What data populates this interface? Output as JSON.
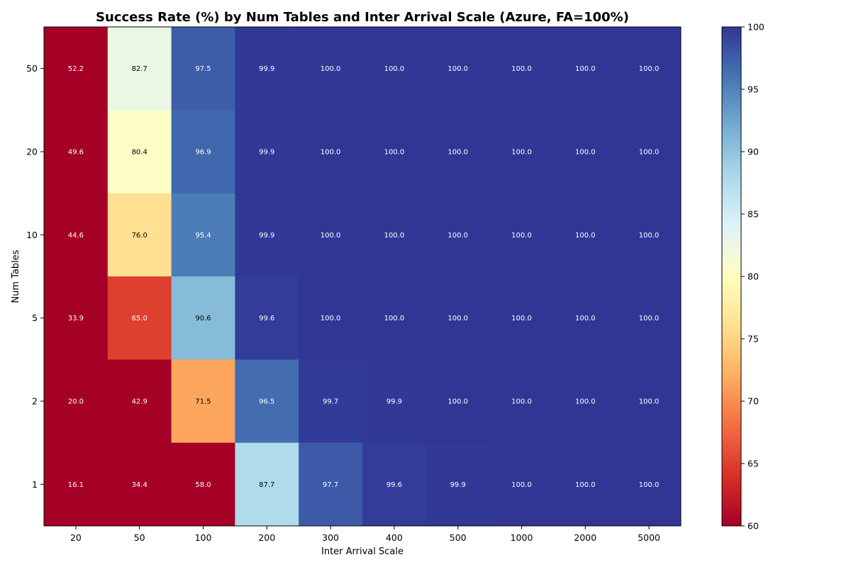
{
  "chart_data": {
    "type": "heatmap",
    "title": "Success Rate (%) by Num Tables and Inter Arrival Scale (Azure, FA=100%)",
    "xlabel": "Inter Arrival Scale",
    "ylabel": "Num Tables",
    "x_categories": [
      "20",
      "50",
      "100",
      "200",
      "300",
      "400",
      "500",
      "1000",
      "2000",
      "5000"
    ],
    "y_categories": [
      "50",
      "20",
      "10",
      "5",
      "2",
      "1"
    ],
    "values": [
      [
        52.2,
        82.7,
        97.5,
        99.9,
        100.0,
        100.0,
        100.0,
        100.0,
        100.0,
        100.0
      ],
      [
        49.6,
        80.4,
        96.9,
        99.9,
        100.0,
        100.0,
        100.0,
        100.0,
        100.0,
        100.0
      ],
      [
        44.6,
        76.0,
        95.4,
        99.9,
        100.0,
        100.0,
        100.0,
        100.0,
        100.0,
        100.0
      ],
      [
        33.9,
        65.0,
        90.6,
        99.6,
        100.0,
        100.0,
        100.0,
        100.0,
        100.0,
        100.0
      ],
      [
        20.0,
        42.9,
        71.5,
        96.5,
        99.7,
        99.9,
        100.0,
        100.0,
        100.0,
        100.0
      ],
      [
        16.1,
        34.4,
        58.0,
        87.7,
        97.7,
        99.6,
        99.9,
        100.0,
        100.0,
        100.0
      ]
    ],
    "colorbar": {
      "colormap": "RdYlBu",
      "vmin": 60,
      "vmax": 100,
      "ticks": [
        "60",
        "65",
        "70",
        "75",
        "80",
        "85",
        "90",
        "95",
        "100"
      ]
    },
    "value_format": "1 decimal"
  }
}
